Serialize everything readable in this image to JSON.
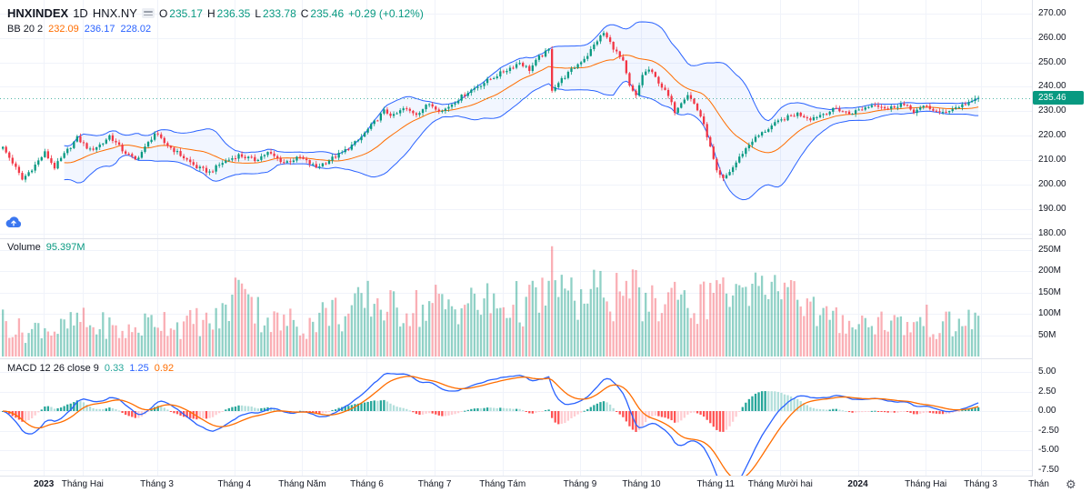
{
  "header": {
    "symbol": "HNXINDEX",
    "interval": "1D",
    "exchange": "HNX.NY",
    "ohlc": {
      "open_label": "O",
      "open": "235.17",
      "high_label": "H",
      "high": "236.35",
      "low_label": "L",
      "low": "233.78",
      "close_label": "C",
      "close": "235.46",
      "change": "+0.29 (+0.12%)"
    },
    "bb": {
      "label": "BB 20 2",
      "basis": "232.09",
      "upper": "236.17",
      "lower": "228.02"
    }
  },
  "volume_pane": {
    "label": "Volume",
    "value": "95.397M"
  },
  "macd_pane": {
    "label": "MACD 12 26 close 9",
    "histogram": "0.33",
    "macd": "1.25",
    "signal": "0.92"
  },
  "price_axis": {
    "ticks": [
      "270.00",
      "260.00",
      "250.00",
      "240.00",
      "230.00",
      "220.00",
      "210.00",
      "200.00",
      "190.00",
      "180.00"
    ],
    "last_price": "235.46"
  },
  "volume_axis": {
    "ticks": [
      "250M",
      "200M",
      "150M",
      "100M",
      "50M"
    ]
  },
  "macd_axis": {
    "ticks": [
      "5.00",
      "2.50",
      "0.00",
      "-2.50",
      "-5.00",
      "-7.50"
    ]
  },
  "time_axis": {
    "labels": [
      {
        "label": "2023",
        "d": 13,
        "major": true
      },
      {
        "label": "Tháng Hai",
        "d": 25
      },
      {
        "label": "Tháng 3",
        "d": 48
      },
      {
        "label": "Tháng 4",
        "d": 72
      },
      {
        "label": "Tháng Năm",
        "d": 93
      },
      {
        "label": "Tháng 6",
        "d": 113
      },
      {
        "label": "Tháng 7",
        "d": 134
      },
      {
        "label": "Tháng Tám",
        "d": 155
      },
      {
        "label": "Tháng 9",
        "d": 179
      },
      {
        "label": "Tháng 10",
        "d": 198
      },
      {
        "label": "Tháng 11",
        "d": 221
      },
      {
        "label": "Tháng Mười hai",
        "d": 241
      },
      {
        "label": "2024",
        "d": 265,
        "major": true
      },
      {
        "label": "Tháng Hai",
        "d": 286
      },
      {
        "label": "Tháng 3",
        "d": 303
      },
      {
        "label": "Thán",
        "d": 321
      }
    ]
  },
  "icons": {
    "gear": "⚙"
  },
  "colors": {
    "up": "#089981",
    "down": "#F23645",
    "vol_up": "rgba(8,153,129,0.45)",
    "vol_down": "rgba(242,54,69,0.40)",
    "bb_line": "#2962FF",
    "bb_fill": "rgba(41,98,255,0.06)",
    "bb_basis": "#FF6D00",
    "macd_line": "#2962FF",
    "signal_line": "#FF6D00",
    "hist_grow_up": "#26A69A",
    "hist_fall_up": "#B2DFDB",
    "hist_fall_down": "#FF5252",
    "hist_grow_down": "#FFCDD2",
    "grid": "#F0F3FA",
    "separator": "#E0E3EB",
    "text": "#131722",
    "muted": "#787B86",
    "badge_bg": "#089981",
    "badge_text": "#FFFFFF"
  },
  "chart_data": {
    "type": "candlestick",
    "symbol": "HNXINDEX",
    "interval": "1D",
    "panes": [
      "price+bollinger(20,2)",
      "volume",
      "macd(12,26,9)"
    ],
    "n_days": 303,
    "y_axis_range": [
      178,
      275.5
    ],
    "volume_axis_max_m": 275,
    "macd_axis_range": [
      -8.3,
      6.5
    ],
    "last_candle": {
      "open": 235.17,
      "high": 236.35,
      "low": 233.78,
      "close": 235.46,
      "volume_m": 95.397
    },
    "close_anchors": [
      [
        0,
        215
      ],
      [
        3,
        209
      ],
      [
        6,
        202
      ],
      [
        10,
        208
      ],
      [
        13,
        213
      ],
      [
        16,
        207
      ],
      [
        20,
        214
      ],
      [
        23,
        219
      ],
      [
        27,
        214
      ],
      [
        31,
        217
      ],
      [
        33,
        220
      ],
      [
        37,
        214
      ],
      [
        41,
        210
      ],
      [
        44,
        215
      ],
      [
        47,
        221
      ],
      [
        50,
        217
      ],
      [
        55,
        212
      ],
      [
        60,
        207
      ],
      [
        64,
        205
      ],
      [
        68,
        209
      ],
      [
        73,
        212
      ],
      [
        78,
        210
      ],
      [
        82,
        213
      ],
      [
        87,
        209
      ],
      [
        92,
        211
      ],
      [
        97,
        207
      ],
      [
        101,
        210
      ],
      [
        105,
        213
      ],
      [
        110,
        218
      ],
      [
        114,
        224
      ],
      [
        118,
        230
      ],
      [
        121,
        228
      ],
      [
        124,
        231
      ],
      [
        128,
        229
      ],
      [
        132,
        233
      ],
      [
        136,
        230
      ],
      [
        140,
        234
      ],
      [
        144,
        238
      ],
      [
        148,
        241
      ],
      [
        152,
        244
      ],
      [
        156,
        247
      ],
      [
        160,
        250
      ],
      [
        163,
        247
      ],
      [
        166,
        252
      ],
      [
        169,
        255
      ],
      [
        170,
        239
      ],
      [
        173,
        243
      ],
      [
        177,
        248
      ],
      [
        181,
        253
      ],
      [
        184,
        259
      ],
      [
        186,
        262
      ],
      [
        188,
        258
      ],
      [
        190,
        254
      ],
      [
        192,
        250
      ],
      [
        194,
        240
      ],
      [
        196,
        236
      ],
      [
        198,
        245
      ],
      [
        200,
        247
      ],
      [
        203,
        242
      ],
      [
        206,
        236
      ],
      [
        208,
        230
      ],
      [
        210,
        234
      ],
      [
        212,
        237
      ],
      [
        214,
        233
      ],
      [
        216,
        228
      ],
      [
        218,
        220
      ],
      [
        220,
        210
      ],
      [
        221,
        205
      ],
      [
        223,
        202
      ],
      [
        226,
        207
      ],
      [
        229,
        213
      ],
      [
        232,
        218
      ],
      [
        235,
        221
      ],
      [
        238,
        224
      ],
      [
        242,
        227
      ],
      [
        246,
        229
      ],
      [
        250,
        227
      ],
      [
        254,
        229
      ],
      [
        258,
        231
      ],
      [
        262,
        229
      ],
      [
        266,
        231
      ],
      [
        270,
        233
      ],
      [
        274,
        231
      ],
      [
        278,
        233
      ],
      [
        282,
        230
      ],
      [
        286,
        232
      ],
      [
        290,
        229
      ],
      [
        294,
        231
      ],
      [
        298,
        233
      ],
      [
        302,
        235.46
      ]
    ],
    "volume_anchors_m": [
      [
        0,
        85
      ],
      [
        4,
        65
      ],
      [
        8,
        55
      ],
      [
        12,
        75
      ],
      [
        16,
        60
      ],
      [
        20,
        70
      ],
      [
        24,
        85
      ],
      [
        28,
        65
      ],
      [
        32,
        75
      ],
      [
        36,
        55
      ],
      [
        40,
        60
      ],
      [
        44,
        75
      ],
      [
        48,
        90
      ],
      [
        52,
        80
      ],
      [
        56,
        70
      ],
      [
        60,
        85
      ],
      [
        64,
        75
      ],
      [
        68,
        95
      ],
      [
        72,
        150
      ],
      [
        74,
        185
      ],
      [
        76,
        160
      ],
      [
        78,
        110
      ],
      [
        82,
        90
      ],
      [
        86,
        75
      ],
      [
        90,
        85
      ],
      [
        94,
        70
      ],
      [
        98,
        95
      ],
      [
        102,
        110
      ],
      [
        106,
        90
      ],
      [
        110,
        115
      ],
      [
        114,
        135
      ],
      [
        118,
        120
      ],
      [
        122,
        105
      ],
      [
        126,
        120
      ],
      [
        130,
        110
      ],
      [
        134,
        125
      ],
      [
        138,
        115
      ],
      [
        142,
        130
      ],
      [
        146,
        120
      ],
      [
        150,
        125
      ],
      [
        154,
        115
      ],
      [
        158,
        125
      ],
      [
        162,
        120
      ],
      [
        166,
        135
      ],
      [
        169,
        150
      ],
      [
        170,
        250
      ],
      [
        171,
        170
      ],
      [
        173,
        150
      ],
      [
        177,
        125
      ],
      [
        180,
        135
      ],
      [
        184,
        145
      ],
      [
        186,
        155
      ],
      [
        189,
        140
      ],
      [
        192,
        160
      ],
      [
        194,
        150
      ],
      [
        196,
        140
      ],
      [
        199,
        125
      ],
      [
        203,
        115
      ],
      [
        206,
        135
      ],
      [
        209,
        155
      ],
      [
        212,
        125
      ],
      [
        215,
        115
      ],
      [
        218,
        140
      ],
      [
        221,
        180
      ],
      [
        224,
        155
      ],
      [
        226,
        145
      ],
      [
        229,
        125
      ],
      [
        232,
        135
      ],
      [
        235,
        170
      ],
      [
        238,
        145
      ],
      [
        241,
        155
      ],
      [
        244,
        185
      ],
      [
        247,
        135
      ],
      [
        250,
        115
      ],
      [
        253,
        95
      ],
      [
        256,
        85
      ],
      [
        259,
        80
      ],
      [
        262,
        90
      ],
      [
        265,
        75
      ],
      [
        268,
        85
      ],
      [
        271,
        80
      ],
      [
        274,
        90
      ],
      [
        277,
        75
      ],
      [
        280,
        70
      ],
      [
        283,
        80
      ],
      [
        286,
        85
      ],
      [
        289,
        65
      ],
      [
        292,
        75
      ],
      [
        295,
        70
      ],
      [
        298,
        80
      ],
      [
        300,
        95
      ],
      [
        302,
        95.4
      ]
    ],
    "indicators": {
      "bollinger": {
        "length": 20,
        "mult": 2
      },
      "macd": {
        "fast": 12,
        "slow": 26,
        "signal": 9
      }
    }
  }
}
